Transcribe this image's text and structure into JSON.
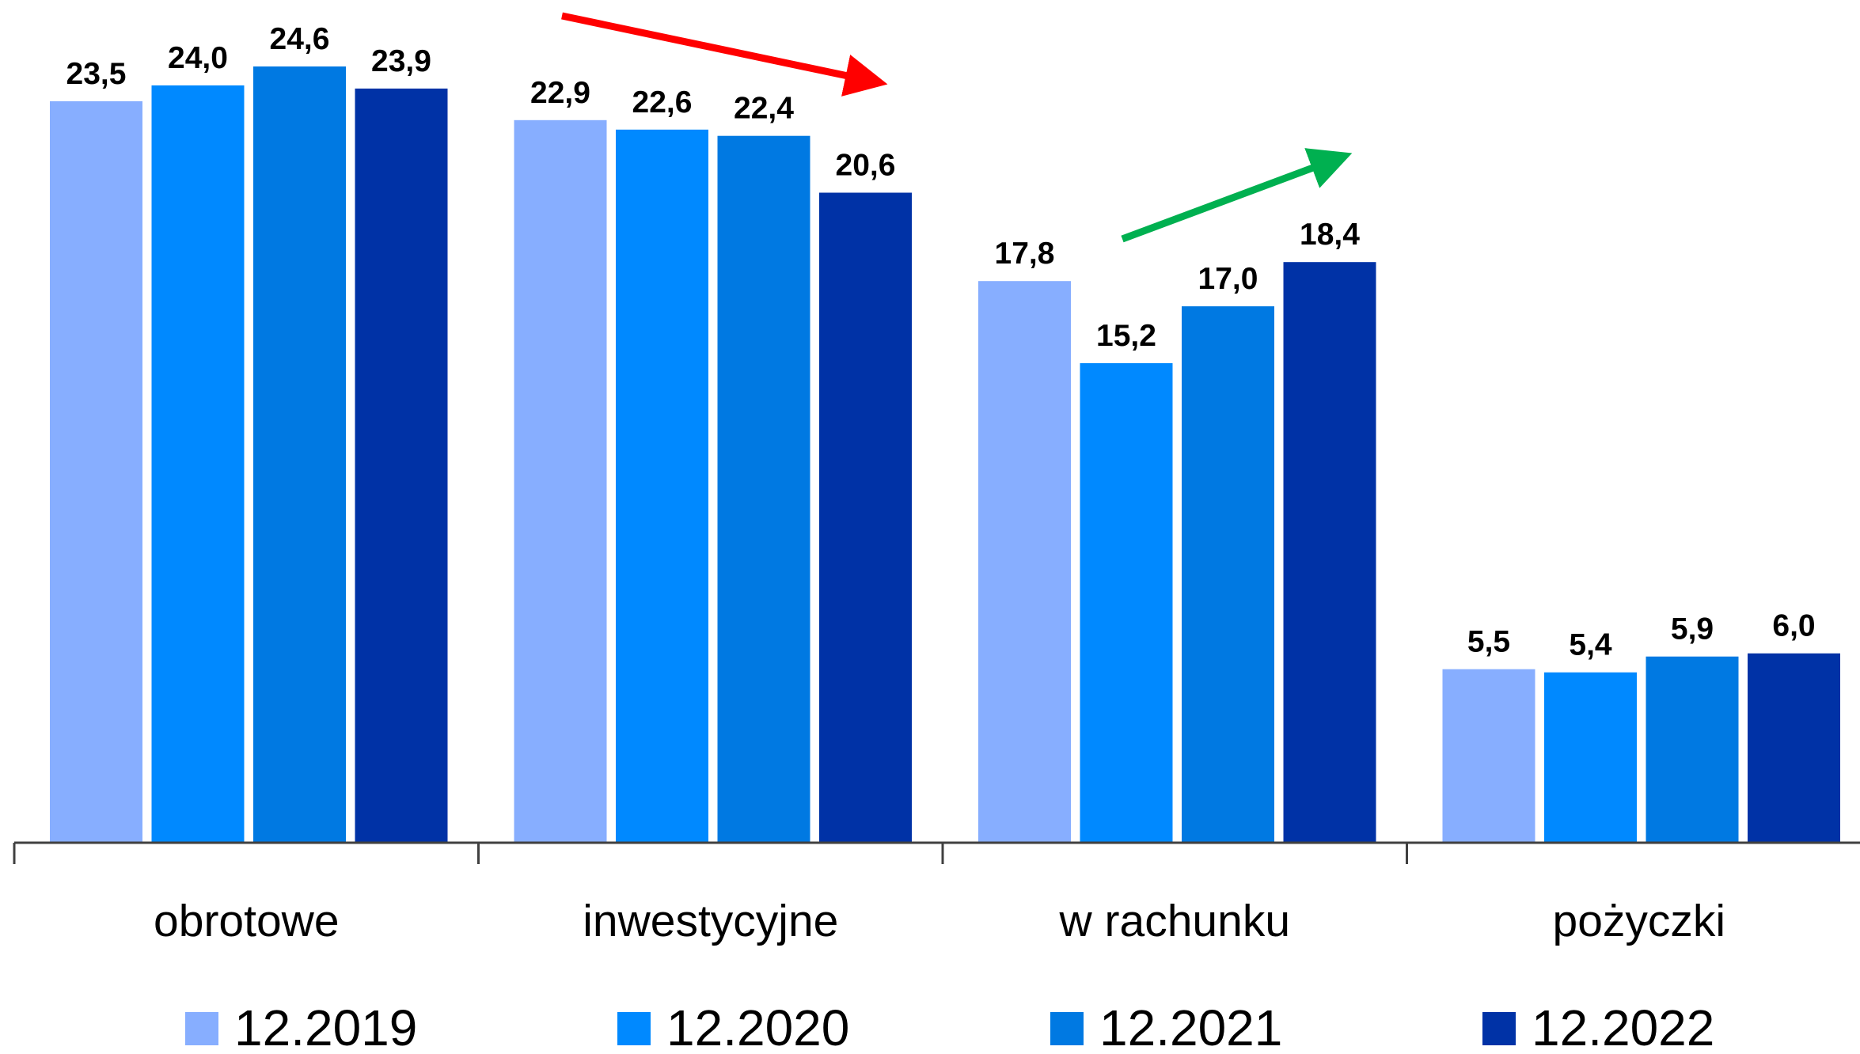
{
  "chart_data": {
    "type": "bar",
    "categories": [
      "obrotowe",
      "inwestycyjne",
      "w rachunku",
      "pożyczki"
    ],
    "series": [
      {
        "name": "12.2019",
        "color": "#87AEFF",
        "values": [
          23.5,
          22.9,
          17.8,
          5.5
        ]
      },
      {
        "name": "12.2020",
        "color": "#0089FF",
        "values": [
          24.0,
          22.6,
          15.2,
          5.4
        ]
      },
      {
        "name": "12.2021",
        "color": "#0079E2",
        "values": [
          24.6,
          22.4,
          17.0,
          5.9
        ]
      },
      {
        "name": "12.2022",
        "color": "#0032A6",
        "values": [
          23.9,
          20.6,
          18.4,
          6.0
        ]
      }
    ],
    "value_labels": [
      [
        "23,5",
        "24,0",
        "24,6",
        "23,9"
      ],
      [
        "22,9",
        "22,6",
        "22,4",
        "20,6"
      ],
      [
        "17,8",
        "15,2",
        "17,0",
        "18,4"
      ],
      [
        "5,5",
        "5,4",
        "5,9",
        "6,0"
      ]
    ],
    "ylim": [
      0,
      27
    ],
    "grid": false,
    "legend_position": "bottom",
    "annotations": [
      {
        "type": "arrow",
        "direction": "down",
        "color": "#FF0000",
        "over_category": "inwestycyjne"
      },
      {
        "type": "arrow",
        "direction": "up",
        "color": "#00B050",
        "over_category": "w rachunku"
      }
    ]
  }
}
